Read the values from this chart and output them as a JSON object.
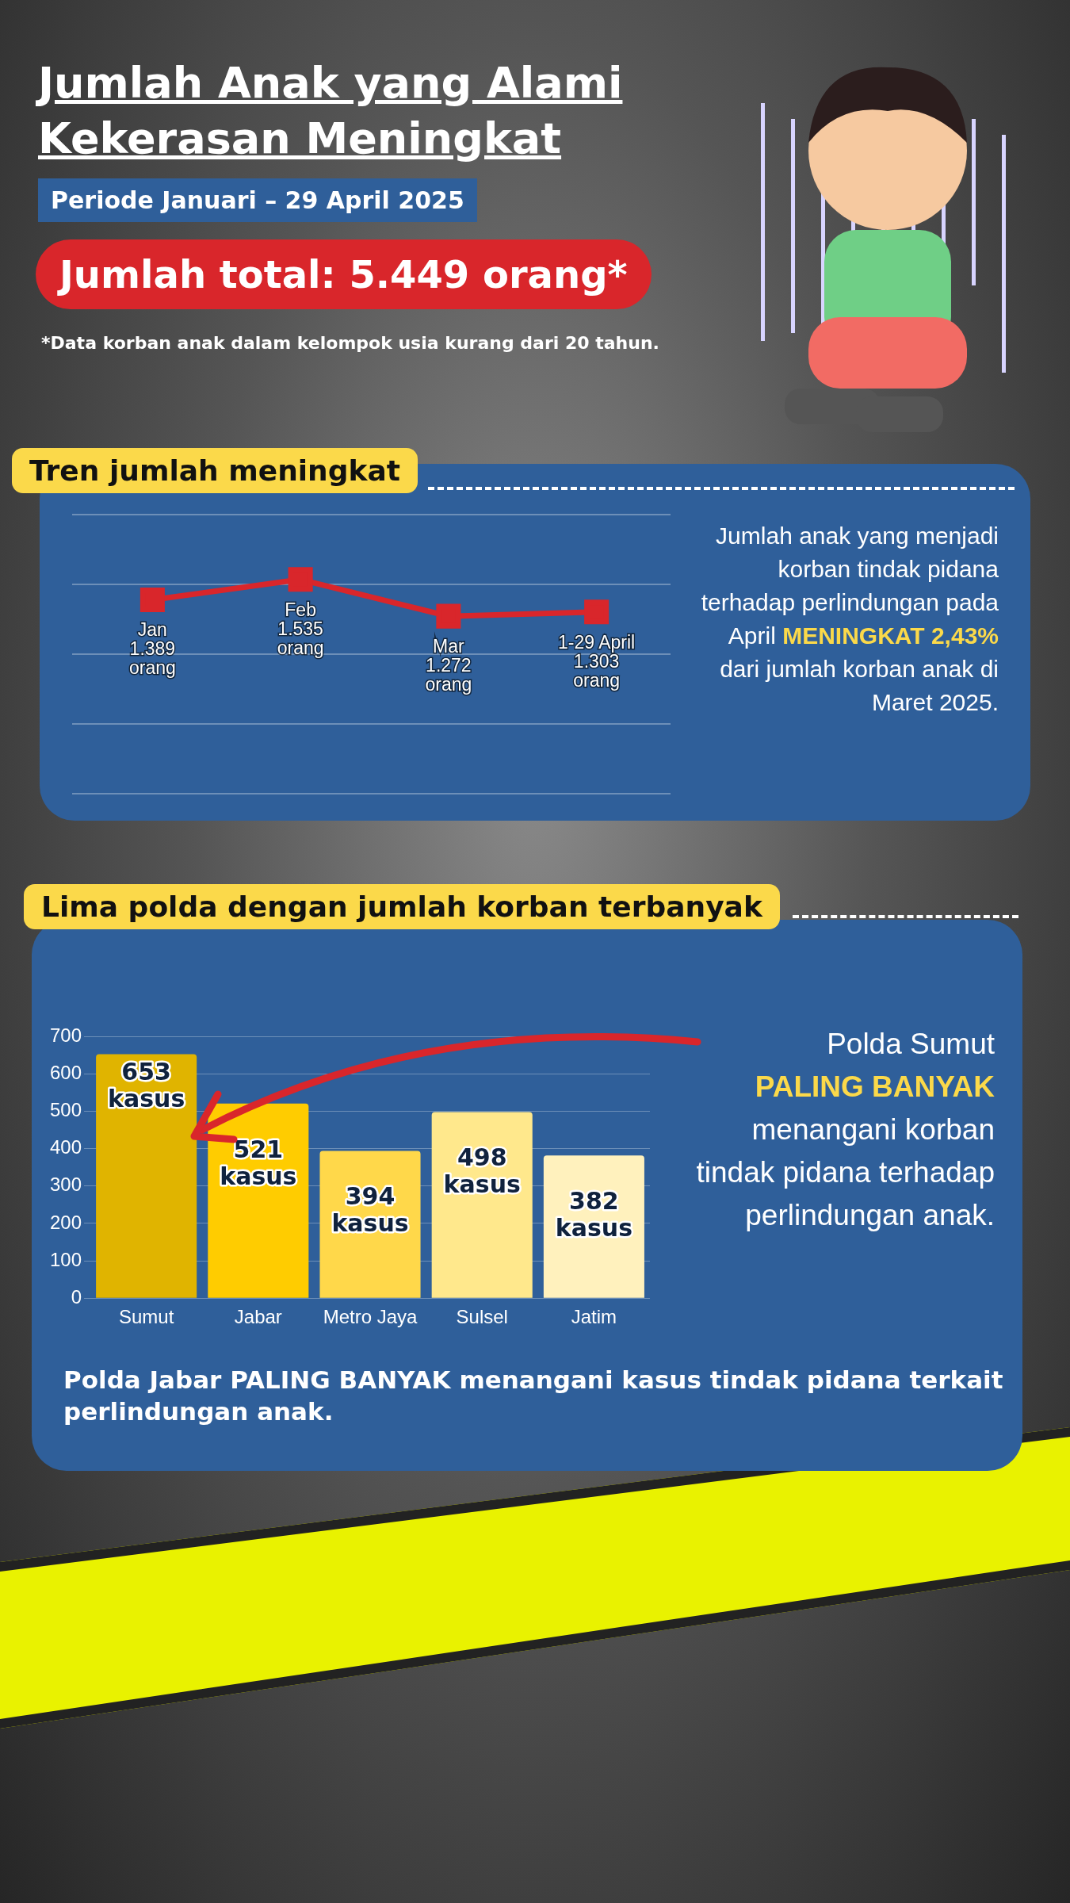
{
  "chart_data": [
    {
      "type": "other",
      "title": "Jumlah Anak yang Alami Kekerasan Meningkat",
      "subtitle": "Periode Januari – 29 April 2025",
      "annotations": [
        "Jumlah total: 5.449 orang*",
        "*Data korban anak dalam kelompok usia kurang dari 20 tahun."
      ]
    },
    {
      "type": "line",
      "title": "Tren jumlah meningkat",
      "categories": [
        "Jan",
        "Feb",
        "Mar",
        "1-29 April"
      ],
      "values": [
        1389,
        1535,
        1272,
        1303
      ],
      "value_labels": [
        "1.389 orang",
        "1.535 orang",
        "1.272 orang",
        "1.303 orang"
      ],
      "color": "#d9262b",
      "marker": "square",
      "ylim": [
        0,
        2000
      ],
      "yticks": [
        {
          "value": 0,
          "label": null
        },
        {
          "value": 500,
          "label": null
        },
        {
          "value": 1000,
          "label": null
        },
        {
          "value": 1500,
          "label": null
        },
        {
          "value": 2000,
          "label": null
        }
      ],
      "grid": "y",
      "tick_labels": false,
      "annotations": [
        "Jumlah anak yang menjadi korban tindak pidana terhadap perlindungan pada April",
        "MENINGKAT",
        "2,43%",
        "dari jumlah korban anak di Maret 2025."
      ]
    },
    {
      "type": "bar",
      "title": "Lima polda dengan jumlah korban terbanyak",
      "categories": [
        "Sumut",
        "Jabar",
        "Metro Jaya",
        "Sulsel",
        "Jatim"
      ],
      "values": [
        653,
        521,
        394,
        498,
        382
      ],
      "value_labels": [
        "653 kasus",
        "521 kasus",
        "394 kasus",
        "498 kasus",
        "382 kasus"
      ],
      "colors": [
        "#e0b400",
        "#ffcc00",
        "#ffd84a",
        "#ffe88c",
        "#fff1bd"
      ],
      "ylim": [
        0,
        700
      ],
      "yticks": [
        0,
        100,
        200,
        300,
        400,
        500,
        600,
        700
      ],
      "grid": "y",
      "annotations": [
        "Polda Sumut",
        "PALING BANYAK",
        "menangani korban tindak pidana terhadap perlindungan anak.",
        "Polda Jabar PALING BANYAK menangani kasus tindak pidana terkait perlindungan anak."
      ]
    }
  ]
}
